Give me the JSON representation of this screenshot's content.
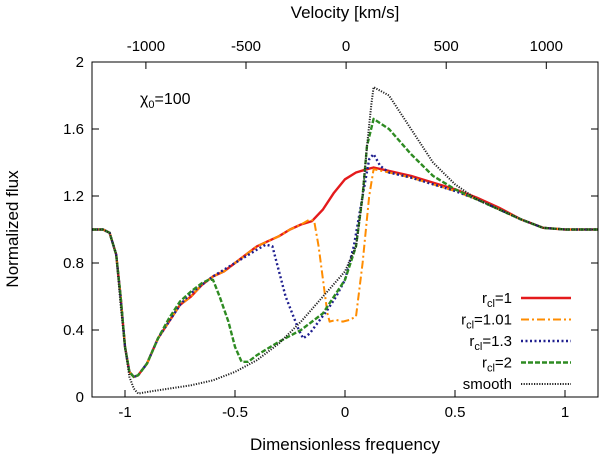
{
  "chart_data": {
    "type": "line",
    "xlabel": "Dimensionless frequency",
    "ylabel": "Normalized flux",
    "top_xlabel": "Velocity [km/s]",
    "annotation": {
      "base": "χ",
      "sub": "0",
      "rest": "=100"
    },
    "xlim": [
      -1.15,
      1.15
    ],
    "ylim": [
      0,
      2
    ],
    "x_ticks": [
      -1,
      -0.5,
      0,
      0.5,
      1
    ],
    "x_tick_labels": [
      "-1",
      "-0.5",
      "0",
      "0.5",
      "1"
    ],
    "y_ticks": [
      0,
      0.4,
      0.8,
      1.2,
      1.6,
      2
    ],
    "y_tick_labels": [
      "0",
      "0.4",
      "0.8",
      "1.2",
      "1.6",
      "2"
    ],
    "top_ticks": [
      -1000,
      -500,
      0,
      500,
      1000
    ],
    "top_tick_labels": [
      "-1000",
      "-500",
      "0",
      "500",
      "1000"
    ],
    "top_tick_positions_x": [
      -0.905,
      -0.45,
      0.005,
      0.46,
      0.915
    ],
    "legend_position": "bottom-right",
    "series": [
      {
        "name": "r_cl=1",
        "label_base": "r",
        "label_sub": "cl",
        "label_rest": "=1",
        "color": "#e41a1c",
        "dash": "solid",
        "points": [
          [
            -1.15,
            1.0
          ],
          [
            -1.1,
            1.0
          ],
          [
            -1.07,
            0.98
          ],
          [
            -1.04,
            0.85
          ],
          [
            -1.02,
            0.6
          ],
          [
            -1.0,
            0.3
          ],
          [
            -0.98,
            0.15
          ],
          [
            -0.96,
            0.12
          ],
          [
            -0.94,
            0.13
          ],
          [
            -0.9,
            0.2
          ],
          [
            -0.85,
            0.35
          ],
          [
            -0.8,
            0.45
          ],
          [
            -0.75,
            0.55
          ],
          [
            -0.7,
            0.6
          ],
          [
            -0.65,
            0.67
          ],
          [
            -0.6,
            0.72
          ],
          [
            -0.55,
            0.75
          ],
          [
            -0.5,
            0.8
          ],
          [
            -0.45,
            0.85
          ],
          [
            -0.4,
            0.9
          ],
          [
            -0.35,
            0.93
          ],
          [
            -0.3,
            0.96
          ],
          [
            -0.25,
            1.0
          ],
          [
            -0.2,
            1.03
          ],
          [
            -0.15,
            1.05
          ],
          [
            -0.1,
            1.12
          ],
          [
            -0.05,
            1.22
          ],
          [
            0.0,
            1.3
          ],
          [
            0.05,
            1.34
          ],
          [
            0.1,
            1.36
          ],
          [
            0.13,
            1.37
          ],
          [
            0.2,
            1.35
          ],
          [
            0.3,
            1.32
          ],
          [
            0.4,
            1.28
          ],
          [
            0.5,
            1.24
          ],
          [
            0.6,
            1.19
          ],
          [
            0.7,
            1.13
          ],
          [
            0.8,
            1.06
          ],
          [
            0.9,
            1.01
          ],
          [
            1.0,
            1.0
          ],
          [
            1.15,
            1.0
          ]
        ]
      },
      {
        "name": "r_cl=1.01",
        "label_base": "r",
        "label_sub": "cl",
        "label_rest": "=1.01",
        "color": "#ff8c00",
        "dash": "dashdot",
        "points": [
          [
            -1.15,
            1.0
          ],
          [
            -1.1,
            1.0
          ],
          [
            -1.07,
            0.98
          ],
          [
            -1.04,
            0.85
          ],
          [
            -1.02,
            0.6
          ],
          [
            -1.0,
            0.3
          ],
          [
            -0.98,
            0.15
          ],
          [
            -0.96,
            0.12
          ],
          [
            -0.94,
            0.13
          ],
          [
            -0.9,
            0.2
          ],
          [
            -0.85,
            0.35
          ],
          [
            -0.8,
            0.45
          ],
          [
            -0.75,
            0.55
          ],
          [
            -0.7,
            0.6
          ],
          [
            -0.65,
            0.67
          ],
          [
            -0.6,
            0.72
          ],
          [
            -0.55,
            0.75
          ],
          [
            -0.5,
            0.8
          ],
          [
            -0.45,
            0.85
          ],
          [
            -0.4,
            0.9
          ],
          [
            -0.35,
            0.93
          ],
          [
            -0.3,
            0.96
          ],
          [
            -0.25,
            1.0
          ],
          [
            -0.2,
            1.03
          ],
          [
            -0.16,
            1.06
          ],
          [
            -0.14,
            1.05
          ],
          [
            -0.12,
            0.9
          ],
          [
            -0.1,
            0.7
          ],
          [
            -0.08,
            0.5
          ],
          [
            -0.07,
            0.45
          ],
          [
            -0.04,
            0.46
          ],
          [
            -0.01,
            0.45
          ],
          [
            0.02,
            0.46
          ],
          [
            0.05,
            0.48
          ],
          [
            0.08,
            0.8
          ],
          [
            0.11,
            1.2
          ],
          [
            0.13,
            1.36
          ],
          [
            0.2,
            1.34
          ],
          [
            0.3,
            1.31
          ],
          [
            0.4,
            1.27
          ],
          [
            0.5,
            1.23
          ],
          [
            0.6,
            1.18
          ],
          [
            0.7,
            1.12
          ],
          [
            0.8,
            1.06
          ],
          [
            0.9,
            1.01
          ],
          [
            1.0,
            1.0
          ],
          [
            1.15,
            1.0
          ]
        ]
      },
      {
        "name": "r_cl=1.3",
        "label_base": "r",
        "label_sub": "cl",
        "label_rest": "=1.3",
        "color": "#1f1f8f",
        "dash": "dotted",
        "points": [
          [
            -1.15,
            1.0
          ],
          [
            -1.1,
            1.0
          ],
          [
            -1.07,
            0.98
          ],
          [
            -1.04,
            0.85
          ],
          [
            -1.02,
            0.6
          ],
          [
            -1.0,
            0.3
          ],
          [
            -0.98,
            0.15
          ],
          [
            -0.96,
            0.12
          ],
          [
            -0.94,
            0.13
          ],
          [
            -0.9,
            0.2
          ],
          [
            -0.85,
            0.35
          ],
          [
            -0.8,
            0.45
          ],
          [
            -0.75,
            0.55
          ],
          [
            -0.7,
            0.62
          ],
          [
            -0.65,
            0.67
          ],
          [
            -0.6,
            0.72
          ],
          [
            -0.55,
            0.76
          ],
          [
            -0.5,
            0.8
          ],
          [
            -0.45,
            0.84
          ],
          [
            -0.4,
            0.88
          ],
          [
            -0.36,
            0.91
          ],
          [
            -0.33,
            0.9
          ],
          [
            -0.3,
            0.75
          ],
          [
            -0.27,
            0.6
          ],
          [
            -0.24,
            0.5
          ],
          [
            -0.21,
            0.4
          ],
          [
            -0.19,
            0.35
          ],
          [
            -0.16,
            0.38
          ],
          [
            -0.12,
            0.45
          ],
          [
            -0.08,
            0.52
          ],
          [
            -0.04,
            0.6
          ],
          [
            0.0,
            0.7
          ],
          [
            0.04,
            0.9
          ],
          [
            0.08,
            1.2
          ],
          [
            0.11,
            1.42
          ],
          [
            0.13,
            1.45
          ],
          [
            0.16,
            1.38
          ],
          [
            0.2,
            1.34
          ],
          [
            0.3,
            1.31
          ],
          [
            0.4,
            1.27
          ],
          [
            0.5,
            1.23
          ],
          [
            0.6,
            1.18
          ],
          [
            0.7,
            1.12
          ],
          [
            0.8,
            1.06
          ],
          [
            0.9,
            1.01
          ],
          [
            1.0,
            1.0
          ],
          [
            1.15,
            1.0
          ]
        ]
      },
      {
        "name": "r_cl=2",
        "label_base": "r",
        "label_sub": "cl",
        "label_rest": "=2",
        "color": "#2e8b22",
        "dash": "dashed",
        "points": [
          [
            -1.15,
            1.0
          ],
          [
            -1.1,
            1.0
          ],
          [
            -1.07,
            0.98
          ],
          [
            -1.04,
            0.85
          ],
          [
            -1.02,
            0.6
          ],
          [
            -1.0,
            0.3
          ],
          [
            -0.98,
            0.15
          ],
          [
            -0.96,
            0.12
          ],
          [
            -0.94,
            0.13
          ],
          [
            -0.9,
            0.2
          ],
          [
            -0.85,
            0.35
          ],
          [
            -0.8,
            0.47
          ],
          [
            -0.75,
            0.57
          ],
          [
            -0.7,
            0.63
          ],
          [
            -0.65,
            0.68
          ],
          [
            -0.62,
            0.7
          ],
          [
            -0.6,
            0.7
          ],
          [
            -0.57,
            0.6
          ],
          [
            -0.53,
            0.45
          ],
          [
            -0.5,
            0.3
          ],
          [
            -0.47,
            0.21
          ],
          [
            -0.44,
            0.21
          ],
          [
            -0.4,
            0.25
          ],
          [
            -0.3,
            0.33
          ],
          [
            -0.2,
            0.4
          ],
          [
            -0.1,
            0.5
          ],
          [
            -0.05,
            0.6
          ],
          [
            0.0,
            0.7
          ],
          [
            0.05,
            0.9
          ],
          [
            0.08,
            1.2
          ],
          [
            0.1,
            1.5
          ],
          [
            0.13,
            1.66
          ],
          [
            0.2,
            1.6
          ],
          [
            0.3,
            1.45
          ],
          [
            0.4,
            1.32
          ],
          [
            0.5,
            1.24
          ],
          [
            0.6,
            1.18
          ],
          [
            0.7,
            1.12
          ],
          [
            0.8,
            1.06
          ],
          [
            0.9,
            1.01
          ],
          [
            1.0,
            1.0
          ],
          [
            1.15,
            1.0
          ]
        ]
      },
      {
        "name": "smooth",
        "label_base": "smooth",
        "label_sub": "",
        "label_rest": "",
        "color": "#222222",
        "dash": "finedot",
        "points": [
          [
            -1.15,
            1.0
          ],
          [
            -1.1,
            1.0
          ],
          [
            -1.07,
            0.98
          ],
          [
            -1.04,
            0.85
          ],
          [
            -1.02,
            0.55
          ],
          [
            -1.0,
            0.3
          ],
          [
            -0.98,
            0.12
          ],
          [
            -0.96,
            0.05
          ],
          [
            -0.94,
            0.02
          ],
          [
            -0.9,
            0.03
          ],
          [
            -0.8,
            0.05
          ],
          [
            -0.7,
            0.07
          ],
          [
            -0.6,
            0.1
          ],
          [
            -0.5,
            0.15
          ],
          [
            -0.4,
            0.22
          ],
          [
            -0.3,
            0.32
          ],
          [
            -0.2,
            0.45
          ],
          [
            -0.1,
            0.6
          ],
          [
            0.0,
            0.75
          ],
          [
            0.05,
            0.9
          ],
          [
            0.08,
            1.2
          ],
          [
            0.1,
            1.5
          ],
          [
            0.12,
            1.75
          ],
          [
            0.13,
            1.85
          ],
          [
            0.2,
            1.8
          ],
          [
            0.3,
            1.6
          ],
          [
            0.4,
            1.4
          ],
          [
            0.5,
            1.27
          ],
          [
            0.6,
            1.18
          ],
          [
            0.7,
            1.12
          ],
          [
            0.8,
            1.06
          ],
          [
            0.9,
            1.01
          ],
          [
            1.0,
            1.0
          ],
          [
            1.15,
            1.0
          ]
        ]
      }
    ]
  }
}
